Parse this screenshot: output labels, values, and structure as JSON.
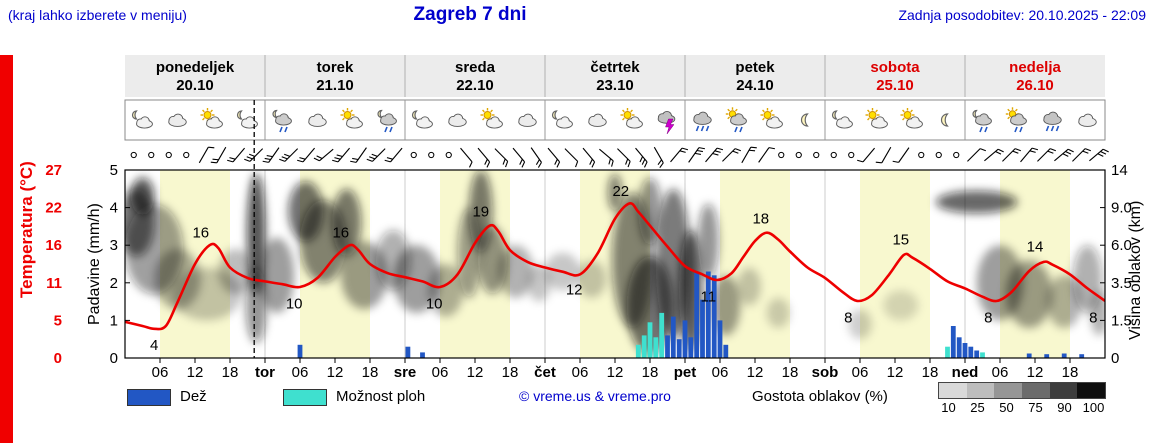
{
  "header": {
    "hint": "(kraj lahko izberete v meniju)",
    "title": "Zagreb 7 dni",
    "last_update": "Zadnja posodobitev: 20.10.2025 - 22:09"
  },
  "axes": {
    "temp_title": "Temperatura (°C)",
    "precip_title": "Padavine (mm/h)",
    "height_title": "Višina oblakov (km)",
    "temp_ticks": [
      "27",
      "22",
      "16",
      "11",
      "5",
      "0"
    ],
    "precip_ticks": [
      "5",
      "4",
      "3",
      "2",
      "1",
      "0"
    ],
    "height_ticks": [
      "14",
      "9.0",
      "6.0",
      "3.5",
      "1.5",
      "0"
    ],
    "hour_labels": [
      "06",
      "12",
      "18"
    ]
  },
  "days": [
    {
      "name": "ponedeljek",
      "date": "20.10",
      "abbr": "",
      "color": "#000000"
    },
    {
      "name": "torek",
      "date": "21.10",
      "abbr": "tor",
      "color": "#000000"
    },
    {
      "name": "sreda",
      "date": "22.10",
      "abbr": "sre",
      "color": "#000000"
    },
    {
      "name": "četrtek",
      "date": "23.10",
      "abbr": "čet",
      "color": "#000000"
    },
    {
      "name": "petek",
      "date": "24.10",
      "abbr": "pet",
      "color": "#000000"
    },
    {
      "name": "sobota",
      "date": "25.10",
      "abbr": "sob",
      "color": "#dd0000"
    },
    {
      "name": "nedelja",
      "date": "26.10",
      "abbr": "ned",
      "color": "#dd0000"
    }
  ],
  "legend": {
    "rain": "Dež",
    "showers": "Možnost ploh",
    "copyright": "© vreme.us & vreme.pro",
    "cloud_density": "Gostota oblakov (%)",
    "density_levels": [
      "10",
      "25",
      "50",
      "75",
      "90",
      "100"
    ],
    "density_colors": [
      "#d9d9d9",
      "#bdbdbd",
      "#969696",
      "#6b6b6b",
      "#3d3d3d",
      "#0f0f0f"
    ],
    "rain_color": "#2257c4",
    "shower_color": "#3fe0cf",
    "temp_color": "#ee0000",
    "day_band_color": "#f8f8cf"
  },
  "chart_data": {
    "type": "meteogram",
    "x_unit": "hours from Monday 00:00 (range 0-168, 7 days)",
    "temp_axis_range": [
      0,
      27
    ],
    "precip_axis_range": [
      0,
      5
    ],
    "height_axis_km": [
      "0",
      "1.5",
      "3.5",
      "6.0",
      "9.0",
      "14"
    ],
    "now_hour": 22.15,
    "temperature_points": [
      [
        0,
        5.2
      ],
      [
        3,
        4.6
      ],
      [
        5,
        4.2
      ],
      [
        7,
        4.6
      ],
      [
        9,
        8
      ],
      [
        12,
        13.5
      ],
      [
        14.5,
        16.2
      ],
      [
        16,
        15.8
      ],
      [
        18,
        13
      ],
      [
        21,
        11.5
      ],
      [
        24,
        11
      ],
      [
        27,
        10.6
      ],
      [
        30,
        10.2
      ],
      [
        33,
        11.5
      ],
      [
        36,
        14.5
      ],
      [
        38.5,
        16.2
      ],
      [
        40,
        15.5
      ],
      [
        42,
        13.5
      ],
      [
        45,
        12.2
      ],
      [
        48,
        11.6
      ],
      [
        51,
        11
      ],
      [
        54,
        10.2
      ],
      [
        57,
        12
      ],
      [
        60,
        16.5
      ],
      [
        62.5,
        19
      ],
      [
        64,
        18.2
      ],
      [
        66,
        15.5
      ],
      [
        69,
        13.8
      ],
      [
        72,
        13
      ],
      [
        75,
        12.4
      ],
      [
        78,
        12
      ],
      [
        81,
        15
      ],
      [
        84,
        20
      ],
      [
        86.5,
        22.2
      ],
      [
        88,
        21
      ],
      [
        90,
        19
      ],
      [
        93,
        16
      ],
      [
        96,
        13.2
      ],
      [
        99,
        12
      ],
      [
        101.5,
        11.2
      ],
      [
        104,
        12.2
      ],
      [
        106,
        14.5
      ],
      [
        108,
        16.8
      ],
      [
        110,
        18
      ],
      [
        112,
        17
      ],
      [
        114,
        15.3
      ],
      [
        117,
        13
      ],
      [
        120,
        11.5
      ],
      [
        123,
        9.5
      ],
      [
        125.5,
        8.2
      ],
      [
        128,
        9
      ],
      [
        131,
        12
      ],
      [
        133.5,
        14.8
      ],
      [
        135,
        14.4
      ],
      [
        138,
        12.8
      ],
      [
        141,
        11
      ],
      [
        144,
        10
      ],
      [
        147,
        8.8
      ],
      [
        149.5,
        8.2
      ],
      [
        152,
        9.5
      ],
      [
        155,
        12.5
      ],
      [
        157.5,
        13.8
      ],
      [
        159,
        13.4
      ],
      [
        162,
        12
      ],
      [
        165,
        10
      ],
      [
        168,
        8.2
      ]
    ],
    "temperature_labels": [
      {
        "t": 5,
        "v": 4,
        "pos": "below"
      },
      {
        "t": 13,
        "v": 16,
        "pos": "above"
      },
      {
        "t": 29,
        "v": 10,
        "pos": "below"
      },
      {
        "t": 37,
        "v": 16,
        "pos": "above"
      },
      {
        "t": 53,
        "v": 10,
        "pos": "below"
      },
      {
        "t": 61,
        "v": 19,
        "pos": "above"
      },
      {
        "t": 77,
        "v": 12,
        "pos": "below"
      },
      {
        "t": 85,
        "v": 22,
        "pos": "above"
      },
      {
        "t": 100,
        "v": 11,
        "pos": "below"
      },
      {
        "t": 109,
        "v": 18,
        "pos": "above"
      },
      {
        "t": 124,
        "v": 8,
        "pos": "below"
      },
      {
        "t": 133,
        "v": 15,
        "pos": "above"
      },
      {
        "t": 148,
        "v": 8,
        "pos": "below"
      },
      {
        "t": 156,
        "v": 14,
        "pos": "above"
      },
      {
        "t": 166,
        "v": 8,
        "pos": "below"
      }
    ],
    "rain_bars": [
      {
        "t": 30,
        "v": 0.35
      },
      {
        "t": 48.5,
        "v": 0.3
      },
      {
        "t": 51,
        "v": 0.15
      },
      {
        "t": 93,
        "v": 0.6
      },
      {
        "t": 94,
        "v": 1.1
      },
      {
        "t": 95,
        "v": 0.5
      },
      {
        "t": 96,
        "v": 1.0
      },
      {
        "t": 97,
        "v": 0.55
      },
      {
        "t": 98,
        "v": 2.3
      },
      {
        "t": 99,
        "v": 1.55
      },
      {
        "t": 100,
        "v": 2.3
      },
      {
        "t": 101,
        "v": 2.2
      },
      {
        "t": 102,
        "v": 1.0
      },
      {
        "t": 103,
        "v": 0.35
      },
      {
        "t": 142,
        "v": 0.85
      },
      {
        "t": 143,
        "v": 0.55
      },
      {
        "t": 144,
        "v": 0.4
      },
      {
        "t": 145,
        "v": 0.3
      },
      {
        "t": 146,
        "v": 0.2
      },
      {
        "t": 155,
        "v": 0.12
      },
      {
        "t": 158,
        "v": 0.1
      },
      {
        "t": 161,
        "v": 0.12
      },
      {
        "t": 164,
        "v": 0.1
      }
    ],
    "shower_bars": [
      {
        "t": 88,
        "v": 0.35
      },
      {
        "t": 89,
        "v": 0.6
      },
      {
        "t": 90,
        "v": 0.95
      },
      {
        "t": 91,
        "v": 0.55
      },
      {
        "t": 92,
        "v": 1.2
      },
      {
        "t": 141,
        "v": 0.3
      },
      {
        "t": 147,
        "v": 0.15
      }
    ],
    "clouds": [
      {
        "t": 2,
        "y": 3.6,
        "rx": 3,
        "ry": 0.9,
        "d": 0.8
      },
      {
        "t": 5,
        "y": 2.9,
        "rx": 5,
        "ry": 1.2,
        "d": 0.55
      },
      {
        "t": 3,
        "y": 4.3,
        "rx": 2,
        "ry": 0.5,
        "d": 0.9
      },
      {
        "t": 9,
        "y": 2.1,
        "rx": 4,
        "ry": 0.8,
        "d": 0.4
      },
      {
        "t": 14,
        "y": 1.7,
        "rx": 6,
        "ry": 0.7,
        "d": 0.3
      },
      {
        "t": 19,
        "y": 2.3,
        "rx": 3,
        "ry": 0.6,
        "d": 0.35
      },
      {
        "t": 22.5,
        "y": 3.3,
        "rx": 1.6,
        "ry": 1.6,
        "d": 0.95
      },
      {
        "t": 22.5,
        "y": 1.4,
        "rx": 1.8,
        "ry": 1.0,
        "d": 0.6
      },
      {
        "t": 26,
        "y": 2.2,
        "rx": 3,
        "ry": 1.0,
        "d": 0.5
      },
      {
        "t": 31,
        "y": 3.9,
        "rx": 3,
        "ry": 0.8,
        "d": 0.8
      },
      {
        "t": 34,
        "y": 3.1,
        "rx": 4,
        "ry": 1.1,
        "d": 0.7
      },
      {
        "t": 38,
        "y": 3.6,
        "rx": 2.5,
        "ry": 0.9,
        "d": 0.75
      },
      {
        "t": 41,
        "y": 2.2,
        "rx": 4,
        "ry": 0.9,
        "d": 0.5
      },
      {
        "t": 46,
        "y": 2.6,
        "rx": 3,
        "ry": 0.8,
        "d": 0.45
      },
      {
        "t": 50,
        "y": 2.1,
        "rx": 4,
        "ry": 0.9,
        "d": 0.5
      },
      {
        "t": 55,
        "y": 1.8,
        "rx": 3,
        "ry": 0.7,
        "d": 0.4
      },
      {
        "t": 59,
        "y": 2.8,
        "rx": 2,
        "ry": 1.2,
        "d": 0.55
      },
      {
        "t": 61,
        "y": 3.9,
        "rx": 2,
        "ry": 1.1,
        "d": 0.75
      },
      {
        "t": 63,
        "y": 2.6,
        "rx": 2.5,
        "ry": 0.9,
        "d": 0.6
      },
      {
        "t": 67,
        "y": 2.3,
        "rx": 3,
        "ry": 0.7,
        "d": 0.4
      },
      {
        "t": 71,
        "y": 2.0,
        "rx": 2,
        "ry": 0.5,
        "d": 0.3
      },
      {
        "t": 75,
        "y": 2.3,
        "rx": 3,
        "ry": 0.5,
        "d": 0.3
      },
      {
        "t": 80,
        "y": 2.1,
        "rx": 2.5,
        "ry": 0.5,
        "d": 0.3
      },
      {
        "t": 84,
        "y": 4.4,
        "rx": 1.2,
        "ry": 0.5,
        "d": 0.7
      },
      {
        "t": 87,
        "y": 2.6,
        "rx": 3.5,
        "ry": 1.8,
        "d": 0.7
      },
      {
        "t": 90,
        "y": 1.4,
        "rx": 4,
        "ry": 1.3,
        "d": 0.8
      },
      {
        "t": 90,
        "y": 3.9,
        "rx": 2,
        "ry": 0.9,
        "d": 0.6
      },
      {
        "t": 94,
        "y": 2.5,
        "rx": 3,
        "ry": 2.0,
        "d": 0.75
      },
      {
        "t": 97,
        "y": 1.8,
        "rx": 2,
        "ry": 1.6,
        "d": 0.9
      },
      {
        "t": 100,
        "y": 3.1,
        "rx": 1.8,
        "ry": 1.0,
        "d": 0.6
      },
      {
        "t": 103,
        "y": 1.4,
        "rx": 2.5,
        "ry": 0.8,
        "d": 0.5
      },
      {
        "t": 107,
        "y": 1.9,
        "rx": 2,
        "ry": 0.5,
        "d": 0.3
      },
      {
        "t": 112,
        "y": 1.2,
        "rx": 2,
        "ry": 0.4,
        "d": 0.25
      },
      {
        "t": 126,
        "y": 0.9,
        "rx": 2,
        "ry": 0.4,
        "d": 0.25
      },
      {
        "t": 133,
        "y": 1.4,
        "rx": 3,
        "ry": 0.4,
        "d": 0.2
      },
      {
        "t": 146,
        "y": 4.15,
        "rx": 7,
        "ry": 0.3,
        "d": 0.85
      },
      {
        "t": 150,
        "y": 2.0,
        "rx": 4,
        "ry": 1.0,
        "d": 0.5
      },
      {
        "t": 155,
        "y": 1.7,
        "rx": 4,
        "ry": 0.9,
        "d": 0.5
      },
      {
        "t": 161,
        "y": 1.5,
        "rx": 3,
        "ry": 0.7,
        "d": 0.4
      },
      {
        "t": 165,
        "y": 2.1,
        "rx": 2.5,
        "ry": 0.9,
        "d": 0.45
      },
      {
        "t": 167,
        "y": 1.2,
        "rx": 1.5,
        "ry": 0.6,
        "d": 0.4
      }
    ],
    "wind": [
      [
        1.5,
        0,
        0
      ],
      [
        4.5,
        0,
        0
      ],
      [
        7.5,
        0,
        0
      ],
      [
        10.5,
        0,
        0
      ],
      [
        13.5,
        1,
        30
      ],
      [
        16.5,
        2,
        210
      ],
      [
        19.5,
        2,
        220
      ],
      [
        22.5,
        3,
        225
      ],
      [
        25.5,
        3,
        215
      ],
      [
        28.5,
        3,
        225
      ],
      [
        31.5,
        2,
        220
      ],
      [
        34.5,
        2,
        230
      ],
      [
        37.5,
        3,
        220
      ],
      [
        40.5,
        2,
        215
      ],
      [
        43.5,
        3,
        225
      ],
      [
        46.5,
        2,
        220
      ],
      [
        49.5,
        0,
        0
      ],
      [
        52.5,
        0,
        0
      ],
      [
        55.5,
        0,
        0
      ],
      [
        58.5,
        1,
        140
      ],
      [
        61.5,
        2,
        140
      ],
      [
        64.5,
        2,
        135
      ],
      [
        67.5,
        2,
        140
      ],
      [
        70.5,
        2,
        145
      ],
      [
        73.5,
        2,
        140
      ],
      [
        76.5,
        1,
        135
      ],
      [
        79.5,
        2,
        140
      ],
      [
        82.5,
        2,
        130
      ],
      [
        85.5,
        2,
        135
      ],
      [
        88.5,
        3,
        140
      ],
      [
        91.5,
        2,
        150
      ],
      [
        94.5,
        2,
        40
      ],
      [
        97.5,
        3,
        35
      ],
      [
        100.5,
        3,
        40
      ],
      [
        103.5,
        2,
        45
      ],
      [
        106.5,
        2,
        30
      ],
      [
        109.5,
        1,
        35
      ],
      [
        112.5,
        0,
        0
      ],
      [
        115.5,
        0,
        0
      ],
      [
        118.5,
        0,
        0
      ],
      [
        121.5,
        0,
        0
      ],
      [
        124.5,
        0,
        0
      ],
      [
        127.5,
        1,
        220
      ],
      [
        130.5,
        1,
        210
      ],
      [
        133.5,
        1,
        215
      ],
      [
        136.5,
        0,
        0
      ],
      [
        139.5,
        0,
        0
      ],
      [
        142.5,
        0,
        0
      ],
      [
        145.5,
        1,
        45
      ],
      [
        148.5,
        2,
        50
      ],
      [
        151.5,
        2,
        45
      ],
      [
        154.5,
        2,
        40
      ],
      [
        157.5,
        2,
        45
      ],
      [
        160.5,
        3,
        50
      ],
      [
        163.5,
        2,
        45
      ],
      [
        166.5,
        3,
        50
      ]
    ],
    "icons": [
      "moon-cloud",
      "cloud",
      "sun-cloud",
      "moon-cloud",
      "moon-rain",
      "cloud",
      "sun-cloud",
      "moon-rain",
      "moon-cloud",
      "cloud",
      "sun-cloud",
      "cloud",
      "moon-cloud",
      "cloud",
      "sun-cloud",
      "storm",
      "rain",
      "sun-rain",
      "sun-cloud",
      "moon",
      "moon-cloud",
      "sun-cloud",
      "sun-cloud",
      "moon",
      "moon-rain",
      "sun-rain",
      "rain",
      "cloud"
    ]
  }
}
